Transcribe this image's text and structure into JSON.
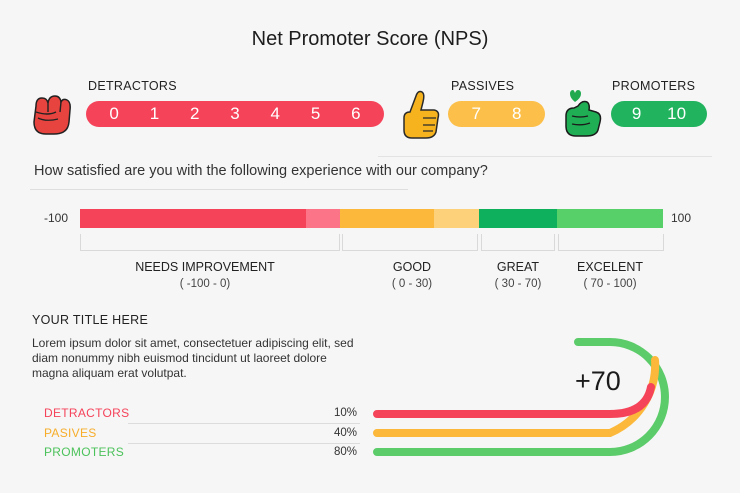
{
  "title": "Net Promoter Score (NPS)",
  "categories": {
    "detractors": {
      "label": "DETRACTORS",
      "numbers": [
        "0",
        "1",
        "2",
        "3",
        "4",
        "5",
        "6"
      ],
      "color": "#f5435a"
    },
    "passives": {
      "label": "PASSIVES",
      "numbers": [
        "7",
        "8"
      ],
      "color": "#fbb83a"
    },
    "promoters": {
      "label": "PROMOTERS",
      "numbers": [
        "9",
        "10"
      ],
      "color": "#22b35f"
    }
  },
  "icons": {
    "detractors": "fist-icon",
    "passives": "thumbs-up-icon",
    "promoters": "finger-heart-icon"
  },
  "question": "How satisfied are you with the following experience with our company?",
  "scale": {
    "min": "-100",
    "max": "100",
    "zones": [
      {
        "name": "NEEDS IMPROVEMENT",
        "range": "( -100 - 0)",
        "color": "#f5435a",
        "light": "#fb7488"
      },
      {
        "name": "GOOD",
        "range": "( 0 - 30)",
        "color": "#fbb83a",
        "light": "#fdd17a"
      },
      {
        "name": "GREAT",
        "range": "( 30 - 70)",
        "color": "#0eb05d",
        "light": ""
      },
      {
        "name": "EXCELENT",
        "range": "( 70 - 100)",
        "color": "#57d06a",
        "light": ""
      }
    ]
  },
  "summary": {
    "title": "YOUR TITLE HERE",
    "text": "Lorem ipsum dolor sit amet, consectetuer adipiscing elit, sed diam nonummy nibh euismod tincidunt ut laoreet dolore magna aliquam erat volutpat.",
    "score": "+70",
    "stats": [
      {
        "label": "DETRACTORS",
        "percent": "10%",
        "value": 0.1,
        "color": "#f5435a"
      },
      {
        "label": "PASIVES",
        "percent": "40%",
        "value": 0.4,
        "color": "#fbb83a"
      },
      {
        "label": "PROMOTERS",
        "percent": "80%",
        "value": 0.8,
        "color": "#5ccb6a"
      }
    ]
  }
}
